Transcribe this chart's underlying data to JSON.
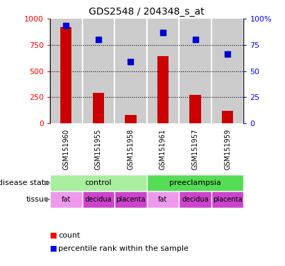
{
  "title": "GDS2548 / 204348_s_at",
  "samples": [
    "GSM151960",
    "GSM151955",
    "GSM151958",
    "GSM151961",
    "GSM151957",
    "GSM151959"
  ],
  "counts": [
    920,
    290,
    80,
    640,
    270,
    120
  ],
  "percentiles": [
    93,
    80,
    59,
    87,
    80,
    66
  ],
  "ylim_left": [
    0,
    1000
  ],
  "ylim_right": [
    0,
    100
  ],
  "yticks_left": [
    0,
    250,
    500,
    750,
    1000
  ],
  "yticks_right": [
    0,
    25,
    50,
    75,
    100
  ],
  "ytick_labels_left": [
    "0",
    "250",
    "500",
    "750",
    "1000"
  ],
  "ytick_labels_right": [
    "0",
    "25",
    "50",
    "75",
    "100%"
  ],
  "bar_color": "#cc0000",
  "dot_color": "#0000cc",
  "disease_info": [
    {
      "label": "control",
      "start": 0,
      "end": 3,
      "color": "#aaeea0"
    },
    {
      "label": "preeclampsia",
      "start": 3,
      "end": 6,
      "color": "#55dd55"
    }
  ],
  "tissue_info": [
    {
      "label": "fat",
      "start": 0,
      "end": 1,
      "color": "#ee99ee"
    },
    {
      "label": "decidua",
      "start": 1,
      "end": 2,
      "color": "#cc44cc"
    },
    {
      "label": "placenta",
      "start": 2,
      "end": 3,
      "color": "#cc44cc"
    },
    {
      "label": "fat",
      "start": 3,
      "end": 4,
      "color": "#ee99ee"
    },
    {
      "label": "decidua",
      "start": 4,
      "end": 5,
      "color": "#cc44cc"
    },
    {
      "label": "placenta",
      "start": 5,
      "end": 6,
      "color": "#cc44cc"
    }
  ],
  "sample_bg_color": "#cccccc",
  "plot_bg_color": "#ffffff",
  "fig_bg_color": "#ffffff"
}
